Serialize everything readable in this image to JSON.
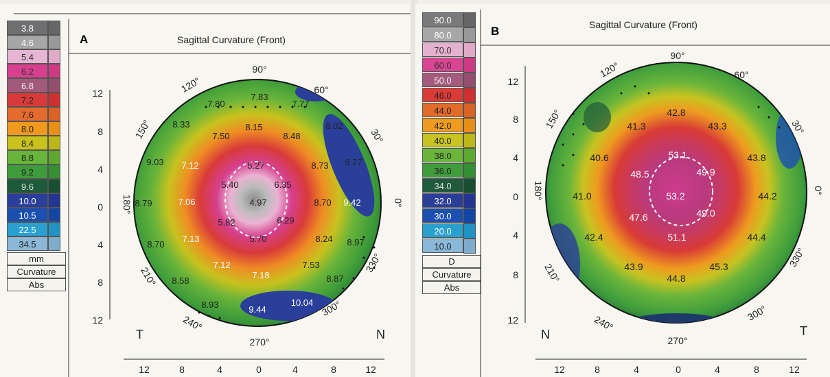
{
  "panels": [
    {
      "letter": "A",
      "title": "Sagittal Curvature (Front)",
      "legend": {
        "values": [
          "3.8",
          "4.6",
          "5.4",
          "6.2",
          "6.8",
          "7.2",
          "7.6",
          "8.0",
          "8.4",
          "8.8",
          "9.2",
          "9.6",
          "10.0",
          "10.5",
          "22.5",
          "34.5"
        ],
        "colors": [
          "#6f6f6f",
          "#a6a6a6",
          "#e7b5d4",
          "#d6408e",
          "#a25a7a",
          "#d83a3a",
          "#e56b2c",
          "#ef9a1f",
          "#c9c21e",
          "#69b43a",
          "#3e9c3a",
          "#1d5a3a",
          "#2a3f9a",
          "#1a4fb0",
          "#2a9fd0",
          "#8bb8d8"
        ],
        "unit": "mm",
        "type_label": "Curvature",
        "mode_label": "Abs"
      },
      "compass": {
        "deg_90": "90°",
        "deg_60": "60°",
        "deg_30": "30°",
        "deg_0": "0°",
        "deg_330": "330°",
        "deg_300": "300°",
        "deg_270": "270°",
        "deg_240": "240°",
        "deg_210": "210°",
        "deg_180": "180°",
        "deg_150": "150°",
        "deg_120": "120°"
      },
      "side_left": "T",
      "side_right": "N",
      "y_ticks": [
        "12",
        "8",
        "4",
        "0",
        "4",
        "8",
        "12"
      ],
      "x_ticks": [
        "12",
        "8",
        "4",
        "0",
        "4",
        "8",
        "12"
      ],
      "readings": [
        "7.83",
        "7.80",
        "7.77",
        "8.33",
        "8.15",
        "7.50",
        "8.02",
        "8.48",
        "9.03",
        "7.12",
        "5.27",
        "8.73",
        "9.27",
        "5.40",
        "6.35",
        "8.79",
        "7.06",
        "4.97",
        "8.70",
        "9.42",
        "5.82",
        "6.29",
        "7.13",
        "5.70",
        "8.24",
        "8.70",
        "8.97",
        "7.12",
        "7.53",
        "7.18",
        "8.58",
        "8.87",
        "8.93",
        "10.04",
        "9.44"
      ]
    },
    {
      "letter": "B",
      "title": "Sagittal Curvature (Front)",
      "legend": {
        "values": [
          "90.0",
          "80.0",
          "70.0",
          "60.0",
          "50.0",
          "46.0",
          "44.0",
          "42.0",
          "40.0",
          "38.0",
          "36.0",
          "34.0",
          "32.0",
          "30.0",
          "20.0",
          "10.0"
        ],
        "colors": [
          "#7a7a7a",
          "#a7a7a7",
          "#e4b2cf",
          "#d94592",
          "#a45c7c",
          "#d93b36",
          "#e36b2a",
          "#ee9b20",
          "#c7c321",
          "#6bb53b",
          "#3f9d3c",
          "#1f5a3b",
          "#2b3f99",
          "#1b4fb0",
          "#2aa0cf",
          "#8ab8d8"
        ],
        "unit": "D",
        "type_label": "Curvature",
        "mode_label": "Abs"
      },
      "compass": {
        "deg_90": "90°",
        "deg_60": "60°",
        "deg_30": "30°",
        "deg_0": "0°",
        "deg_330": "330°",
        "deg_300": "300°",
        "deg_270": "270°",
        "deg_240": "240°",
        "deg_210": "210°",
        "deg_180": "180°",
        "deg_150": "150°",
        "deg_120": "120°"
      },
      "side_left": "N",
      "side_right": "T",
      "y_ticks": [
        "12",
        "8",
        "4",
        "0",
        "4",
        "8",
        "12"
      ],
      "x_ticks": [
        "12",
        "8",
        "4",
        "0",
        "4",
        "8",
        "12"
      ],
      "readings": [
        "42.8",
        "41.3",
        "43.3",
        "40.6",
        "53.1",
        "43.8",
        "48.5",
        "49.9",
        "41.0",
        "53.2",
        "44.2",
        "47.6",
        "49.0",
        "42.4",
        "51.1",
        "44.4",
        "43.9",
        "45.3",
        "44.8"
      ]
    }
  ]
}
